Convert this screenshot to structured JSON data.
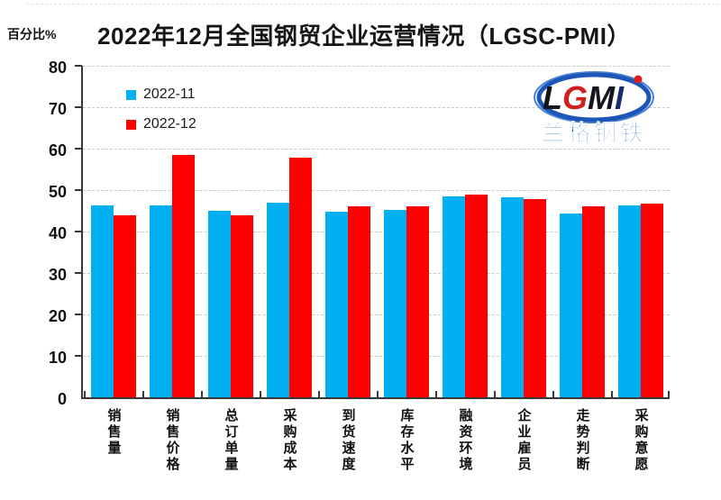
{
  "page": {
    "background": "#ffffff"
  },
  "header": {
    "title": "2022年12月全国钢贸企业运营情况（LGSC-PMI）",
    "unit_label": "百分比%"
  },
  "legend": {
    "items": [
      {
        "label": "2022-11",
        "color": "#00B0F0"
      },
      {
        "label": "2022-12",
        "color": "#FF0000"
      }
    ]
  },
  "logo": {
    "letters": [
      "L",
      "G",
      "M",
      "I"
    ],
    "letter_colors": [
      "#15151e",
      "#cf1f1f",
      "#15151e",
      "#1a2a6e"
    ],
    "subtitle": "兰格钢铁",
    "ring_color": "#1c57b8",
    "subtitle_color": "#1659c9",
    "dot_color": "#e02020"
  },
  "chart_data": {
    "type": "bar",
    "title": "2022年12月全国钢贸企业运营情况（LGSC-PMI）",
    "ylabel": "百分比%",
    "ylim": [
      0,
      80
    ],
    "yticks": [
      0,
      10,
      20,
      30,
      40,
      50,
      60,
      70,
      80
    ],
    "grid": "horizontal-dashed",
    "legend_position": "top-left-inside",
    "categories": [
      "销售量",
      "销售价格",
      "总订单量",
      "采购成本",
      "到货速度",
      "库存水平",
      "融资环境",
      "企业雇员",
      "走势判断",
      "采购意愿"
    ],
    "series": [
      {
        "name": "2022-11",
        "color": "#00B0F0",
        "values": [
          46.3,
          46.3,
          45.0,
          47.0,
          44.8,
          45.3,
          48.5,
          48.3,
          44.4,
          46.2
        ]
      },
      {
        "name": "2022-12",
        "color": "#FF0000",
        "values": [
          44.0,
          58.4,
          44.0,
          57.9,
          46.0,
          46.1,
          49.0,
          47.9,
          46.0,
          46.8
        ]
      }
    ]
  }
}
